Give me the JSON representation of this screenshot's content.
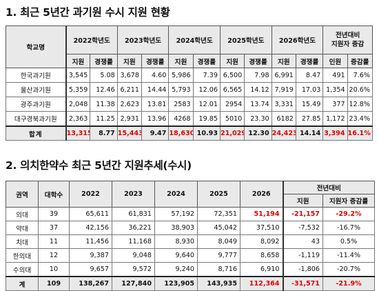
{
  "section1": {
    "title": "1. 최근 5년간 과기원 수시 지원 현황",
    "header": {
      "school": "학교명",
      "years": [
        "2022학년도",
        "2023학년도",
        "2024학년도",
        "2025학년도",
        "2026학년도"
      ],
      "change_title": "전년대비\n지원자 증감",
      "sub_applicants": "지원",
      "sub_ratio": "경쟁률",
      "sub_people": "인원",
      "sub_rate": "증감률"
    },
    "rows": [
      {
        "school": "한국과기원",
        "cells": [
          "3,545",
          "5.08",
          "3,678",
          "4.60",
          "5,986",
          "7.39",
          "6,500",
          "7.98",
          "6,991",
          "8.47",
          "491",
          "7.6%"
        ]
      },
      {
        "school": "울산과기원",
        "cells": [
          "5,359",
          "12.46",
          "6,211",
          "14.44",
          "5,793",
          "12.06",
          "6,565",
          "14.12",
          "7,919",
          "17.03",
          "1,354",
          "20.6%"
        ]
      },
      {
        "school": "광주과기원",
        "cells": [
          "2,048",
          "11.38",
          "2,623",
          "13.81",
          "2583",
          "12.01",
          "2954",
          "13.74",
          "3,331",
          "15.49",
          "377",
          "12.8%"
        ]
      },
      {
        "school": "대구경북과기원",
        "cells": [
          "2,363",
          "11.25",
          "2,931",
          "13.96",
          "4268",
          "19.85",
          "5010",
          "23.30",
          "6182",
          "27.85",
          "1,172",
          "23.4%"
        ]
      }
    ],
    "total": {
      "school": "합계",
      "cells": [
        "13,315",
        "8.77",
        "15,443",
        "9.47",
        "18,630",
        "10.93",
        "21,029",
        "12.30",
        "24,423",
        "14.14",
        "3,394",
        "16.1%"
      ]
    }
  },
  "section2": {
    "title": "2. 의치한약수 최근 5년간 지원추세(수시)",
    "header": {
      "region": "권역",
      "univ_count": "대학수",
      "years": [
        "2022",
        "2023",
        "2024",
        "2025",
        "2026"
      ],
      "change_title": "전년대비",
      "sub_applicants": "지원",
      "sub_rate": "지원자 증감률"
    },
    "rows": [
      {
        "region": "의대",
        "count": "39",
        "cells": [
          "65,611",
          "61,831",
          "57,192",
          "72,351",
          "51,194"
        ],
        "diff": "-21,157",
        "rate": "-29.2%",
        "highlight": true
      },
      {
        "region": "약대",
        "count": "37",
        "cells": [
          "42,156",
          "36,221",
          "38,903",
          "45,042",
          "37,510"
        ],
        "diff": "-7,532",
        "rate": "-16.7%",
        "highlight": false
      },
      {
        "region": "치대",
        "count": "11",
        "cells": [
          "11,456",
          "11,168",
          "8,930",
          "8,049",
          "8,092"
        ],
        "diff": "43",
        "rate": "0.5%",
        "highlight": false
      },
      {
        "region": "한의대",
        "count": "12",
        "cells": [
          "9,387",
          "9,048",
          "9,640",
          "9,777",
          "8,658"
        ],
        "diff": "-1,119",
        "rate": "-11.4%",
        "highlight": false
      },
      {
        "region": "수의대",
        "count": "10",
        "cells": [
          "9,657",
          "9,572",
          "9,240",
          "8,716",
          "6,910"
        ],
        "diff": "-1,806",
        "rate": "-20.7%",
        "highlight": false
      }
    ],
    "total": {
      "region": "계",
      "count": "109",
      "cells": [
        "138,267",
        "127,840",
        "123,905",
        "143,935",
        "112,364"
      ],
      "diff": "-31,571",
      "rate": "-21.9%"
    }
  },
  "colors": {
    "accent_red": "#e00000",
    "header_gray": "#e9e9e9"
  }
}
